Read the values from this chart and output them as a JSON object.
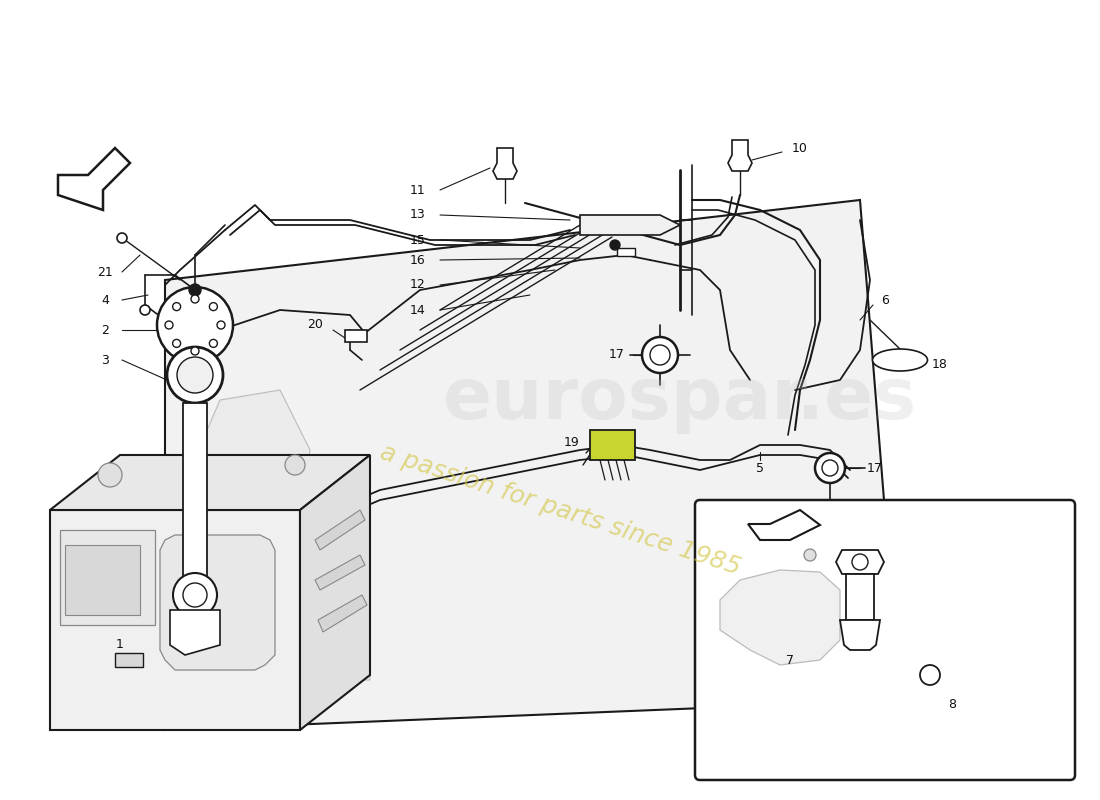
{
  "bg_color": "#ffffff",
  "line_color": "#1a1a1a",
  "light_line_color": "#bbbbbb",
  "mid_line_color": "#888888",
  "watermark_text1": "eurospar.es",
  "watermark_text2": "a passion for parts since 1985",
  "wm_color1": "#cccccc",
  "wm_color2": "#d4c84a"
}
